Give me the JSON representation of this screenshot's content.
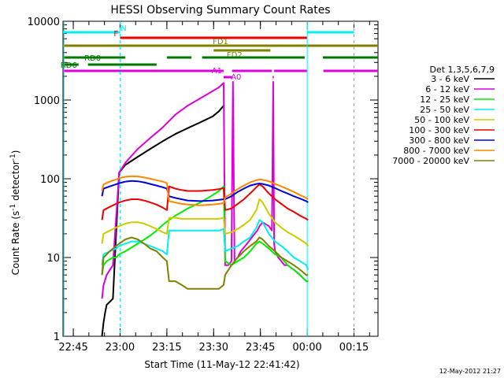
{
  "chart_data": {
    "type": "line",
    "title": "HESSI Observing Summary Count Rates",
    "xlabel": "Start Time (11-May-12 22:41:42)",
    "ylabel_main": "Count Rate (s",
    "ylabel_sup": "-1",
    "ylabel_mid": " detector",
    "ylabel_end": ")",
    "footer": "12-May-2012 21:27",
    "y_scale": "log",
    "x_unit": "minutes after 22:41:42",
    "xlim": [
      0,
      101
    ],
    "ylim": [
      1,
      10000
    ],
    "x_ticks": [
      {
        "t": 3.3,
        "label": "22:45"
      },
      {
        "t": 18.3,
        "label": "23:00"
      },
      {
        "t": 33.3,
        "label": "23:15"
      },
      {
        "t": 48.3,
        "label": "23:30"
      },
      {
        "t": 63.3,
        "label": "23:45"
      },
      {
        "t": 78.3,
        "label": "00:00"
      },
      {
        "t": 93.3,
        "label": "00:15"
      }
    ],
    "y_ticks": [
      {
        "v": 1,
        "label": "1"
      },
      {
        "v": 10,
        "label": "10"
      },
      {
        "v": 100,
        "label": "100"
      },
      {
        "v": 1000,
        "label": "1000"
      },
      {
        "v": 10000,
        "label": "10000"
      }
    ],
    "legend": {
      "title": "Det 1,3,5,6,7,9",
      "placement": "right"
    },
    "series": [
      {
        "name": "3 - 6 keV",
        "color": "#000000",
        "x": [
          12.5,
          13,
          13.5,
          14,
          16,
          18,
          20,
          24,
          28,
          32,
          36,
          40,
          44,
          48,
          50,
          51.5
        ],
        "y": [
          1,
          1.5,
          2,
          2.5,
          3,
          120,
          150,
          190,
          240,
          300,
          370,
          440,
          520,
          620,
          720,
          850
        ]
      },
      {
        "name": "6 - 12 keV",
        "color": "#dd00dd",
        "x": [
          12.5,
          13,
          14,
          16,
          18,
          20,
          24,
          28,
          32,
          36,
          40,
          44,
          48,
          50,
          51.5,
          52,
          53,
          54,
          54.5,
          55,
          56,
          57,
          59,
          61,
          62.3,
          63,
          64,
          66,
          67,
          67.4,
          67.7,
          68,
          69,
          70,
          71,
          72,
          74,
          76,
          78,
          78.6
        ],
        "y": [
          3,
          4.5,
          6,
          8,
          120,
          160,
          240,
          330,
          450,
          650,
          850,
          1050,
          1300,
          1450,
          1650,
          8,
          8,
          9,
          1700,
          9,
          10,
          12,
          15,
          19,
          22,
          25,
          28,
          25,
          22,
          1700,
          15,
          12,
          10,
          9,
          8,
          8,
          7,
          6,
          5,
          5
        ]
      },
      {
        "name": "12 - 25 keV",
        "color": "#00ee00",
        "x": [
          12.5,
          13,
          14,
          16,
          17,
          18,
          20,
          24,
          28,
          30,
          32,
          34,
          36,
          40,
          44,
          48,
          50,
          51.5,
          52,
          54,
          56,
          58,
          60,
          62,
          63,
          64,
          66,
          68,
          70,
          72,
          74,
          76,
          78,
          78.6
        ],
        "y": [
          6,
          8,
          9,
          10,
          10,
          11,
          12,
          15,
          19,
          22,
          26,
          30,
          34,
          42,
          50,
          62,
          70,
          80,
          9,
          8,
          9,
          10,
          12,
          15,
          16,
          15,
          13,
          11,
          10,
          8,
          7,
          6,
          5,
          5
        ]
      },
      {
        "name": "25 - 50 keV",
        "color": "#00eeee",
        "x": [
          12.5,
          13,
          15,
          17,
          18,
          20,
          22,
          24,
          26,
          28,
          30,
          32,
          33.3,
          34,
          40,
          46,
          50,
          51.5,
          52,
          54,
          56,
          58,
          60,
          62,
          63,
          64,
          66,
          68,
          70,
          72,
          74,
          76,
          78,
          78.6
        ],
        "y": [
          8,
          11,
          12,
          13,
          14,
          15,
          16,
          16,
          15,
          14,
          13,
          12,
          11,
          22,
          22,
          22,
          22,
          23,
          12,
          13,
          14,
          16,
          18,
          24,
          30,
          28,
          20,
          16,
          14,
          12,
          10,
          9,
          8,
          7
        ]
      },
      {
        "name": "50 - 100 keV",
        "color": "#cccc00",
        "x": [
          12.5,
          13,
          15,
          17,
          18,
          20,
          22,
          24,
          26,
          28,
          30,
          32,
          33.3,
          34,
          36,
          38,
          40,
          44,
          48,
          50,
          51.5,
          52,
          54,
          56,
          58,
          60,
          62,
          63,
          64,
          66,
          68,
          70,
          72,
          74,
          76,
          78,
          78.6
        ],
        "y": [
          15,
          20,
          22,
          24,
          25,
          27,
          28,
          28,
          27,
          25,
          23,
          21,
          20,
          32,
          32,
          31,
          31,
          31,
          31,
          31,
          32,
          20,
          21,
          23,
          26,
          30,
          40,
          55,
          50,
          36,
          28,
          24,
          21,
          19,
          17,
          15,
          14
        ]
      },
      {
        "name": "100 - 300 keV",
        "color": "#ee0000",
        "x": [
          12.5,
          13,
          15,
          17,
          18,
          20,
          22,
          24,
          26,
          28,
          30,
          32,
          33.3,
          34,
          36,
          38,
          40,
          44,
          48,
          50,
          51.5,
          52,
          54,
          56,
          58,
          60,
          62,
          63,
          64,
          66,
          68,
          70,
          72,
          74,
          76,
          78,
          78.6
        ],
        "y": [
          30,
          40,
          44,
          48,
          50,
          53,
          55,
          55,
          53,
          50,
          47,
          43,
          40,
          80,
          75,
          72,
          70,
          70,
          72,
          74,
          76,
          40,
          42,
          48,
          55,
          65,
          78,
          85,
          80,
          65,
          55,
          48,
          42,
          38,
          34,
          31,
          30
        ]
      },
      {
        "name": "300 - 800 keV",
        "color": "#0000dd",
        "x": [
          12.5,
          13,
          15,
          17,
          18,
          20,
          22,
          24,
          26,
          28,
          30,
          32,
          33.3,
          34,
          36,
          38,
          40,
          44,
          48,
          50,
          51.5,
          52,
          54,
          56,
          58,
          60,
          62,
          63,
          64,
          66,
          68,
          70,
          72,
          74,
          76,
          78,
          78.6
        ],
        "y": [
          60,
          75,
          80,
          85,
          88,
          92,
          94,
          93,
          90,
          86,
          82,
          78,
          75,
          60,
          57,
          55,
          53,
          52,
          53,
          54,
          55,
          55,
          60,
          68,
          75,
          82,
          86,
          87,
          86,
          82,
          76,
          70,
          65,
          60,
          56,
          52,
          50
        ]
      },
      {
        "name": "800 - 7000 keV",
        "color": "#ff8800",
        "x": [
          12.5,
          13,
          15,
          17,
          18,
          20,
          22,
          24,
          26,
          28,
          30,
          32,
          33.3,
          34,
          36,
          38,
          40,
          44,
          48,
          50,
          51.5,
          52,
          54,
          56,
          58,
          60,
          62,
          63,
          64,
          66,
          68,
          70,
          72,
          74,
          76,
          78,
          78.6
        ],
        "y": [
          70,
          85,
          92,
          98,
          102,
          106,
          108,
          107,
          104,
          100,
          96,
          92,
          88,
          52,
          50,
          48,
          47,
          46,
          47,
          48,
          49,
          58,
          65,
          74,
          82,
          90,
          96,
          98,
          97,
          93,
          86,
          80,
          74,
          68,
          62,
          57,
          55
        ]
      },
      {
        "name": "7000 - 20000 keV",
        "color": "#808000",
        "x": [
          12.5,
          13,
          15,
          17,
          18,
          20,
          22,
          24,
          26,
          28,
          30,
          32,
          33.3,
          34,
          36,
          38,
          40,
          44,
          48,
          50,
          51.5,
          52,
          54,
          56,
          58,
          60,
          62,
          63,
          64,
          66,
          68,
          70,
          72,
          74,
          76,
          78,
          78.6
        ],
        "y": [
          6,
          10,
          12,
          14,
          15,
          17,
          18,
          17,
          15,
          13,
          12,
          10,
          9,
          5,
          5,
          4.5,
          4,
          4,
          4,
          4,
          4.5,
          6,
          8,
          10,
          12,
          14,
          16,
          18,
          17,
          14,
          12,
          10,
          9,
          8,
          7,
          6,
          6
        ]
      }
    ],
    "annotations": {
      "flag_bars": [
        {
          "label": "N",
          "color": "#00eeee",
          "segments": [
            [
              0,
              18.3
            ],
            [
              78.3,
              93.3
            ]
          ]
        },
        {
          "label": "F",
          "color": "#ee0000",
          "segments": [
            [
              18.3,
              78.3
            ]
          ]
        },
        {
          "label": "FD1",
          "color": "#808000",
          "segments": [
            [
              0,
              101
            ]
          ]
        },
        {
          "label": "FD2",
          "color": "#808000",
          "segments": [
            [
              48.3,
              66.5
            ]
          ]
        },
        {
          "label": "RD0",
          "color": "#007700",
          "segments": [
            [
              0,
              20
            ],
            [
              33.3,
              41.2
            ],
            [
              44.6,
              77.5
            ],
            [
              83.3,
              101
            ]
          ]
        },
        {
          "label": "RD6",
          "color": "#007700",
          "segments": [
            [
              0,
              5
            ],
            [
              8,
              30
            ]
          ]
        },
        {
          "label": "A1",
          "color": "#dd00dd",
          "segments": [
            [
              0,
              51.5
            ],
            [
              54.2,
              66.9
            ],
            [
              67.7,
              78.3
            ],
            [
              83.5,
              101
            ]
          ]
        },
        {
          "label": "A0",
          "color": "#dd00dd",
          "segments": [
            [
              51.5,
              54.2
            ],
            [
              67.2,
              67.6
            ]
          ]
        }
      ]
    }
  }
}
